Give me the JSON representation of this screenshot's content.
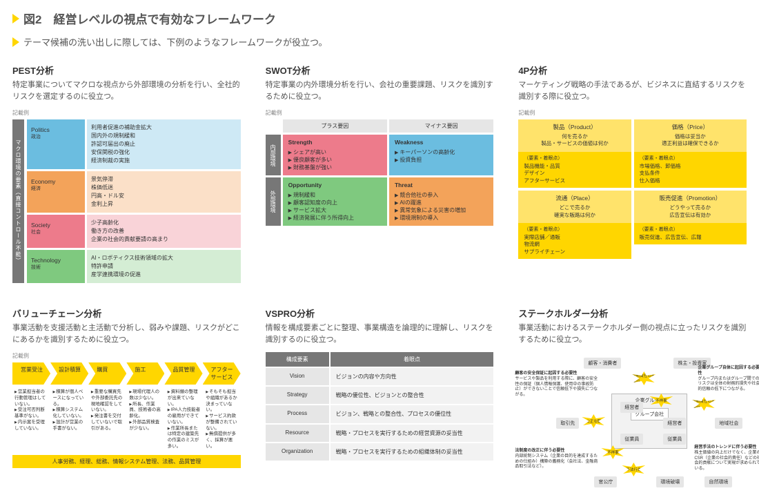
{
  "title": "図2　経営レベルの視点で有効なフレームワーク",
  "subtitle": "テーマ候補の洗い出しに際しては、下例のようなフレームワークが役立つ。",
  "note_label": "記載例",
  "colors": {
    "yellow": "#ffd600",
    "gray_dark": "#777777",
    "gray_mid": "#e6e6e6",
    "gray_light": "#f2f2f2",
    "pest_p": "#6bbde0",
    "pest_e": "#f3a35a",
    "pest_s": "#ed7b8b",
    "pest_t": "#7fc97f",
    "swot_s": "#ed7b8b",
    "swot_w": "#6bbde0",
    "swot_o": "#7fc97f",
    "swot_t": "#f3a35a",
    "fourp_q": "#ffe36b",
    "fourp_a": "#ffd600"
  },
  "pest": {
    "title": "PEST分析",
    "desc": "特定事業についてマクロな視点から外部環境の分析を行い、全社的リスクを選定するのに役立つ。",
    "axis": "マクロ環境の要素（直接コントロール不能）",
    "rows": [
      {
        "en": "Politics",
        "jp": "政治",
        "detail": "利用者促進の補助金拡大\n国内外の規制緩和\n許認可届出の廃止\n安保関税の強化\n経済制裁の実施"
      },
      {
        "en": "Economy",
        "jp": "経済",
        "detail": "景気停滞\n株価低迷\n円高・ドル安\n金利上昇"
      },
      {
        "en": "Society",
        "jp": "社会",
        "detail": "少子高齢化\n働き方の改善\n企業の社会的責献要請の高まり"
      },
      {
        "en": "Technology",
        "jp": "技術",
        "detail": "AI・ロボティクス技術領域の拡大\n特許申請\n産学連携環境の促進"
      }
    ]
  },
  "swot": {
    "title": "SWOT分析",
    "desc": "特定事業の内外環境分析を行い、会社の重要課題、リスクを識別するために役立つ。",
    "col_plus": "プラス要因",
    "col_minus": "マイナス要因",
    "row_in": "内部環境",
    "row_out": "外部環境",
    "s": {
      "h": "Strength",
      "items": [
        "シェアが高い",
        "優良顧客が多い",
        "財務基盤が強い"
      ]
    },
    "w": {
      "h": "Weakness",
      "items": [
        "キーパーソンの高齢化",
        "投資負担"
      ]
    },
    "o": {
      "h": "Opportunity",
      "items": [
        "規制緩和",
        "顧客認知度の向上",
        "サービス拡大",
        "経済発展に伴う所得向上"
      ]
    },
    "t": {
      "h": "Threat",
      "items": [
        "競合他社の参入",
        "AIの躍進",
        "異常気象による災害の増加",
        "環境規制の導入"
      ]
    }
  },
  "fourp": {
    "title": "4P分析",
    "desc": "マーケティング戦略の手法であるが、ビジネスに直結するリスクを識別する際に役立つ。",
    "items": [
      {
        "t": "製品（Product）",
        "q": "何を売るか\n製品・サービスの価値は何か",
        "at": "（要素・着眼点）",
        "a": "製品機能・品質\nデザイン\nアフターサービス"
      },
      {
        "t": "価格（Price）",
        "q": "価格は妥当か\n適正利益は確保できるか",
        "at": "（要素・着眼点）",
        "a": "市場価格、卸価格\n支払条件\n仕入価格"
      },
      {
        "t": "流通（Place）",
        "q": "どこで売るか\n確実な販路は何か",
        "at": "（要素・着眼点）",
        "a": "実際店舗／通販\n物流網\nサプライチェーン"
      },
      {
        "t": "販売促進（Promotion）",
        "q": "どうやって売るか\n広告宣伝は有効か",
        "at": "（要素・着眼点）",
        "a": "販売促進、広告宣伝、広報"
      }
    ]
  },
  "vc": {
    "title": "バリューチェーン分析",
    "desc": "事業活動を支援活動と主活動で分析し、弱みや課題、リスクがどこにあるかを識別するために役立つ。",
    "stages": [
      "営業受注",
      "設計積算",
      "購買",
      "施工",
      "品質管理",
      "アフターサービス"
    ],
    "cols": [
      [
        "営業担当者の行動管理はしていない。",
        "受注可否判断基準がない。",
        "内示案を受理していない。"
      ],
      [
        "積算が個人ベースになっている。",
        "積算システム化していない。",
        "設計が営業の手書がない。"
      ],
      [
        "重要な購買先や外部委託先の現地確認をしていない。",
        "発注書を交付していないで取引がある。"
      ],
      [
        "現場代理人の数は少ない。",
        "所長、作業員、技術者の高齢化。",
        "外部品質検査が少ない。"
      ],
      [
        "資料類の整理が出来ていない。",
        "IPA人力技能者の雇用ができていない。",
        "作業所長または特定の建築先の作業のミスが多い。"
      ],
      [
        "そもそも担当や組織があるか決まっていない。",
        "サービス約款が整備されていない。",
        "無償提供が多く、採算が悪い。"
      ]
    ],
    "support": "人事労務、経理、総務、情報システム管理、法務、品質管理"
  },
  "vspro": {
    "title": "VSPRO分析",
    "desc": "情報を構成要素ごとに整理、事業構造を論理的に理解し、リスクを識別するのに役立つ。",
    "h1": "構成要素",
    "h2": "着眼点",
    "rows": [
      {
        "l": "Vision",
        "d": "ビジョンの内容や方向性"
      },
      {
        "l": "Strategy",
        "d": "戦略の優位性、ビジョンとの整合性"
      },
      {
        "l": "Process",
        "d": "ビジョン、戦略との整合性、プロセスの優位性"
      },
      {
        "l": "Resource",
        "d": "戦略・プロセスを実行するための経営資源の妥当性"
      },
      {
        "l": "Organization",
        "d": "戦略・プロセスを実行するための組織体制の妥当性"
      }
    ]
  },
  "stake": {
    "title": "ステークホルダー分析",
    "desc": "事業活動におけるステークホルダー側の視点に立ったリスクを識別するために役立つ。",
    "center": "グループ会社",
    "group": "企業グループ",
    "nodes": {
      "cust": "顧客・消費者",
      "share": "株主・投資家",
      "trade": "取引先",
      "emp": "従業員",
      "gov": "官公庁",
      "env": "環境破壊",
      "mgr": "経営者",
      "emp2": "従業員",
      "mgr2": "経営者",
      "local": "地域社会",
      "nat": "自然環境"
    },
    "bursts": {
      "b1": "説明責任の不履行",
      "b2": "不祥事",
      "b3": "不公正な取引",
      "b4": "不祥事",
      "b5": "不法行為",
      "b6": "説明責任の不履行"
    },
    "texts": {
      "t1_h": "顧客の安全保証に起因する必要性",
      "t1": "サービスや製品を利用する際に、顧客の安全性の保証（個人情報保護、使用中の事故防止）ができないことで信頼低下や損失につながる。",
      "t2_h": "企業グループ自体に起因する必要性",
      "t2": "グループ内またはグループ間でのリスクは全体の財務的損失や社会的信頼の低下につながる。",
      "t3_h": "法制度の改正に伴う必要性",
      "t3": "内部統制システム（企業の目的を達成するための仕組み）構築の義務化（会社法、金融商品取引法など）。",
      "t4_h": "経営手法のトレンドに伴う必要性",
      "t4": "株主価値の向上だけでなく、企業のCSR（企業の社会的責任）などの社会的貢献について実現が求められている。"
    }
  }
}
